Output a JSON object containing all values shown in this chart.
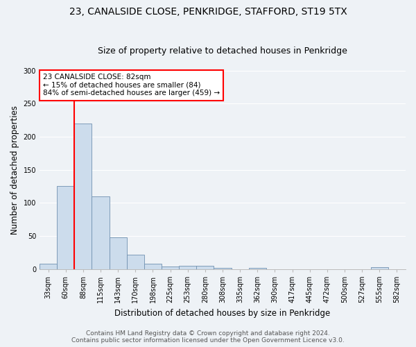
{
  "title": "23, CANALSIDE CLOSE, PENKRIDGE, STAFFORD, ST19 5TX",
  "subtitle": "Size of property relative to detached houses in Penkridge",
  "xlabel": "Distribution of detached houses by size in Penkridge",
  "ylabel": "Number of detached properties",
  "bin_labels": [
    "33sqm",
    "60sqm",
    "88sqm",
    "115sqm",
    "143sqm",
    "170sqm",
    "198sqm",
    "225sqm",
    "253sqm",
    "280sqm",
    "308sqm",
    "335sqm",
    "362sqm",
    "390sqm",
    "417sqm",
    "445sqm",
    "472sqm",
    "500sqm",
    "527sqm",
    "555sqm",
    "582sqm"
  ],
  "bar_values": [
    8,
    125,
    220,
    110,
    48,
    22,
    8,
    4,
    5,
    5,
    2,
    0,
    2,
    0,
    0,
    0,
    0,
    0,
    0,
    3,
    0
  ],
  "bar_color": "#ccdcec",
  "bar_edge_color": "#7090b0",
  "vline_color": "red",
  "ylim": [
    0,
    300
  ],
  "yticks": [
    0,
    50,
    100,
    150,
    200,
    250,
    300
  ],
  "annotation_text": "23 CANALSIDE CLOSE: 82sqm\n← 15% of detached houses are smaller (84)\n84% of semi-detached houses are larger (459) →",
  "annotation_box_color": "white",
  "annotation_box_edge_color": "red",
  "footer_line1": "Contains HM Land Registry data © Crown copyright and database right 2024.",
  "footer_line2": "Contains public sector information licensed under the Open Government Licence v3.0.",
  "background_color": "#eef2f6",
  "grid_color": "#ffffff",
  "title_fontsize": 10,
  "subtitle_fontsize": 9,
  "label_fontsize": 8.5,
  "tick_fontsize": 7,
  "footer_fontsize": 6.5,
  "annotation_fontsize": 7.5
}
